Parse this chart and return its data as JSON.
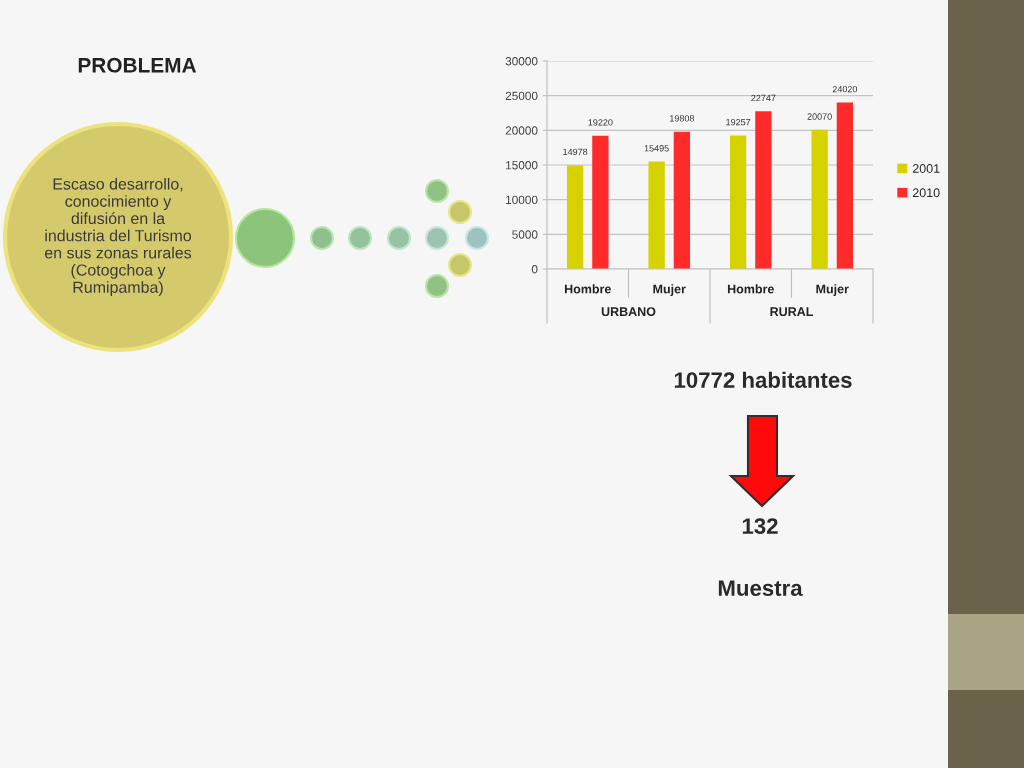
{
  "chart_data": {
    "type": "bar",
    "title": "PROBLEMA",
    "categories": [
      "Hombre",
      "Mujer",
      "Hombre",
      "Mujer"
    ],
    "series": [
      {
        "name": "2001",
        "color": "#d6d200",
        "values": [
          14978,
          15495,
          19257,
          20070
        ]
      },
      {
        "name": "2010",
        "color": "#ff2b2b",
        "values": [
          19220,
          19808,
          22747,
          24020
        ]
      }
    ],
    "ylim": [
      0,
      30000
    ],
    "yticks": [
      0,
      5000,
      10000,
      15000,
      20000,
      25000,
      30000
    ],
    "grid": "y",
    "legend": "right",
    "data_labels": true,
    "annotations": [
      "URBANO",
      "RURAL",
      "Escaso desarrollo,\nconocimiento y\ndifusión en la\nindustria del Turismo\nen sus zonas rurales\n(Cotogchoa y\nRumipamba)",
      "10772 habitantes",
      "132",
      "Muestra"
    ]
  }
}
